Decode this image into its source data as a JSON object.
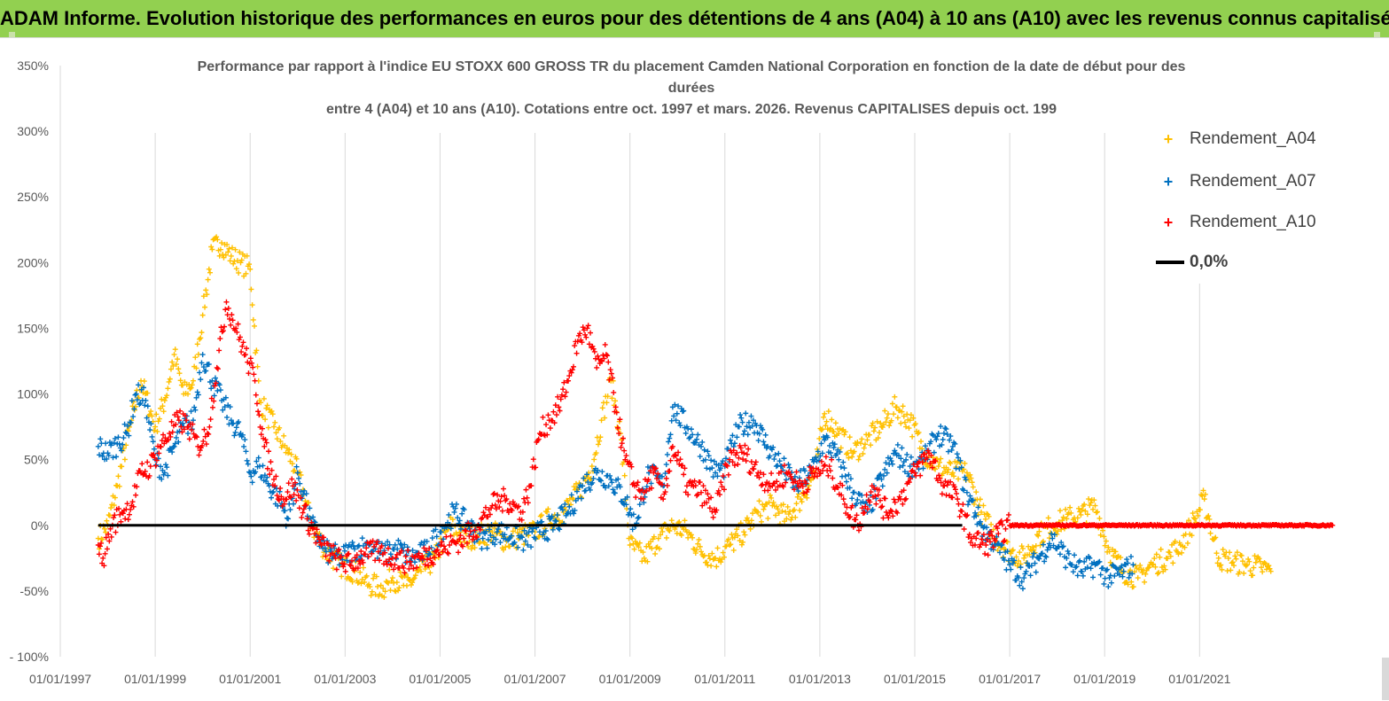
{
  "banner": {
    "title": "ADAM Informe. Evolution historique des performances en euros pour des détentions de 4 ans (A04) à 10 ans (A10) avec les revenus connus capitalisés",
    "color": "#92d050"
  },
  "chart_data": {
    "type": "scatter",
    "title_lines": [
      "Performance par rapport à l'indice EU STOXX 600 GROSS TR  du placement Camden National Corporation en fonction de la date de début pour des",
      "durées",
      "entre 4 (A04) et 10 ans (A10).  Cotations entre oct. 1997 et mars. 2026. Revenus CAPITALISES depuis oct. 199"
    ],
    "xlabel": "",
    "ylabel": "",
    "xlim": [
      1997.0,
      2024.0
    ],
    "ylim": [
      -100,
      350
    ],
    "grid": "vertical",
    "y_ticks": [
      -100,
      -50,
      0,
      50,
      100,
      150,
      200,
      250,
      300,
      350
    ],
    "y_tick_labels": [
      "- 100%",
      "-50%",
      "0%",
      "50%",
      "100%",
      "150%",
      "200%",
      "250%",
      "300%",
      "350%"
    ],
    "x_ticks": [
      1997,
      1999,
      2001,
      2003,
      2005,
      2007,
      2009,
      2011,
      2013,
      2015,
      2017,
      2019,
      2021
    ],
    "x_tick_labels": [
      "01/01/1997",
      "01/01/1999",
      "01/01/2001",
      "01/01/2003",
      "01/01/2005",
      "01/01/2007",
      "01/01/2009",
      "01/01/2011",
      "01/01/2013",
      "01/01/2015",
      "01/01/2017",
      "01/01/2019",
      "01/01/2021"
    ],
    "legend_position": "top-right",
    "series": [
      {
        "name": "Rendement_A04",
        "color": "#ffc000",
        "marker": "+",
        "x": [
          1997.8,
          1998.0,
          1998.2,
          1998.5,
          1998.7,
          1999.0,
          1999.2,
          1999.4,
          1999.6,
          1999.8,
          2000.0,
          2000.2,
          2000.4,
          2000.6,
          2000.8,
          2001.0,
          2001.2,
          2001.5,
          2001.8,
          2002.0,
          2002.3,
          2002.6,
          2002.9,
          2003.2,
          2003.5,
          2003.8,
          2004.0,
          2004.3,
          2004.6,
          2004.9,
          2005.2,
          2005.5,
          2005.8,
          2006.1,
          2006.4,
          2006.7,
          2007.0,
          2007.3,
          2007.6,
          2007.8,
          2008.0,
          2008.2,
          2008.4,
          2008.6,
          2008.8,
          2009.0,
          2009.3,
          2009.6,
          2009.9,
          2010.2,
          2010.5,
          2010.8,
          2011.1,
          2011.4,
          2011.7,
          2012.0,
          2012.3,
          2012.6,
          2012.9,
          2013.1,
          2013.4,
          2013.7,
          2014.0,
          2014.3,
          2014.6,
          2014.9,
          2015.2,
          2015.5,
          2015.8,
          2016.1,
          2016.4,
          2016.7,
          2017.0,
          2017.3,
          2017.6,
          2017.9,
          2018.2,
          2018.5,
          2018.8,
          2019.1,
          2019.4,
          2019.7,
          2020.0,
          2020.3,
          2020.6,
          2020.9,
          2021.1,
          2021.4,
          2021.7,
          2022.0,
          2022.3,
          2022.5
        ],
        "values": [
          -10,
          0,
          30,
          80,
          110,
          75,
          95,
          130,
          100,
          110,
          160,
          210,
          215,
          205,
          200,
          195,
          95,
          75,
          55,
          40,
          0,
          -20,
          -30,
          -35,
          -45,
          -48,
          -40,
          -46,
          -35,
          -25,
          0,
          -10,
          -8,
          -5,
          -12,
          -8,
          -5,
          5,
          10,
          20,
          30,
          45,
          80,
          110,
          70,
          -15,
          -25,
          -10,
          0,
          -5,
          -20,
          -25,
          -15,
          -5,
          10,
          15,
          5,
          20,
          40,
          85,
          70,
          55,
          65,
          75,
          90,
          80,
          55,
          45,
          40,
          40,
          10,
          -10,
          -20,
          -25,
          -8,
          0,
          5,
          8,
          15,
          -20,
          -35,
          -40,
          -30,
          -25,
          -15,
          5,
          20,
          -25,
          -28,
          -30,
          -32,
          -35
        ]
      },
      {
        "name": "Rendement_A07",
        "color": "#0070c0",
        "marker": "+",
        "x": [
          1997.8,
          1998.0,
          1998.2,
          1998.4,
          1998.6,
          1998.8,
          1999.0,
          1999.2,
          1999.4,
          1999.6,
          1999.8,
          2000.0,
          2000.2,
          2000.4,
          2000.6,
          2000.8,
          2001.0,
          2001.2,
          2001.4,
          2001.6,
          2001.8,
          2002.0,
          2002.3,
          2002.6,
          2002.9,
          2003.2,
          2003.5,
          2003.8,
          2004.1,
          2004.4,
          2004.7,
          2005.0,
          2005.3,
          2005.6,
          2005.9,
          2006.2,
          2006.5,
          2006.8,
          2007.1,
          2007.4,
          2007.7,
          2008.0,
          2008.3,
          2008.6,
          2008.9,
          2009.1,
          2009.4,
          2009.7,
          2009.9,
          2010.2,
          2010.5,
          2010.8,
          2011.0,
          2011.3,
          2011.6,
          2011.9,
          2012.2,
          2012.5,
          2012.8,
          2013.1,
          2013.4,
          2013.7,
          2014.0,
          2014.3,
          2014.6,
          2014.9,
          2015.2,
          2015.5,
          2015.8,
          2016.1,
          2016.4,
          2016.7,
          2017.0,
          2017.3,
          2017.6,
          2017.9,
          2018.2,
          2018.5,
          2018.8,
          2019.1,
          2019.4,
          2019.6
        ],
        "values": [
          60,
          55,
          62,
          70,
          100,
          95,
          50,
          40,
          60,
          75,
          80,
          130,
          110,
          95,
          80,
          70,
          40,
          45,
          30,
          20,
          5,
          40,
          0,
          -20,
          -25,
          -18,
          -15,
          -22,
          -18,
          -25,
          -20,
          -5,
          10,
          0,
          -10,
          -5,
          -8,
          -12,
          -5,
          0,
          10,
          30,
          40,
          35,
          20,
          0,
          40,
          30,
          90,
          75,
          60,
          40,
          45,
          75,
          80,
          60,
          45,
          30,
          40,
          65,
          50,
          25,
          10,
          35,
          55,
          45,
          50,
          70,
          60,
          25,
          0,
          -15,
          -30,
          -40,
          -25,
          -10,
          -25,
          -35,
          -30,
          -40,
          -35,
          -30
        ]
      },
      {
        "name": "Rendement_A10",
        "color": "#ff0000",
        "marker": "+",
        "x": [
          1997.8,
          1997.9,
          1998.1,
          1998.3,
          1998.5,
          1998.7,
          1998.9,
          1999.1,
          1999.3,
          1999.5,
          1999.7,
          1999.9,
          2000.1,
          2000.3,
          2000.5,
          2000.7,
          2000.9,
          2001.1,
          2001.3,
          2001.5,
          2001.7,
          2001.9,
          2002.2,
          2002.5,
          2002.8,
          2003.1,
          2003.4,
          2003.7,
          2004.0,
          2004.3,
          2004.6,
          2004.9,
          2005.2,
          2005.5,
          2005.8,
          2006.1,
          2006.4,
          2006.7,
          2006.9,
          2007.1,
          2007.3,
          2007.5,
          2007.7,
          2007.9,
          2008.1,
          2008.3,
          2008.5,
          2008.7,
          2008.9,
          2009.1,
          2009.3,
          2009.5,
          2009.7,
          2009.9,
          2010.2,
          2010.5,
          2010.8,
          2011.1,
          2011.4,
          2011.7,
          2012.0,
          2012.3,
          2012.6,
          2012.9,
          2013.2,
          2013.5,
          2013.8,
          2014.1,
          2014.4,
          2014.7,
          2015.0,
          2015.3,
          2015.6,
          2015.9,
          2016.2,
          2016.5,
          2017.0,
          2018.0,
          2019.0,
          2020.0,
          2021.0,
          2022.0,
          2023.0,
          2023.8
        ],
        "values": [
          -15,
          -25,
          0,
          10,
          15,
          40,
          45,
          60,
          70,
          80,
          75,
          60,
          70,
          120,
          170,
          150,
          130,
          110,
          60,
          35,
          20,
          30,
          5,
          -15,
          -25,
          -30,
          -22,
          -20,
          -25,
          -28,
          -25,
          -20,
          -15,
          -10,
          0,
          15,
          20,
          10,
          30,
          70,
          80,
          90,
          110,
          140,
          150,
          120,
          130,
          90,
          50,
          30,
          25,
          40,
          20,
          60,
          30,
          25,
          10,
          50,
          55,
          40,
          30,
          40,
          30,
          40,
          45,
          20,
          0,
          30,
          10,
          20,
          40,
          55,
          30,
          20,
          -10,
          -15,
          0,
          0,
          0,
          0,
          0,
          0,
          0,
          0
        ]
      },
      {
        "name": "0,0%",
        "color": "#000000",
        "marker": "line",
        "x": [
          1997.8,
          2016.0
        ],
        "values": [
          0,
          0
        ]
      }
    ]
  }
}
